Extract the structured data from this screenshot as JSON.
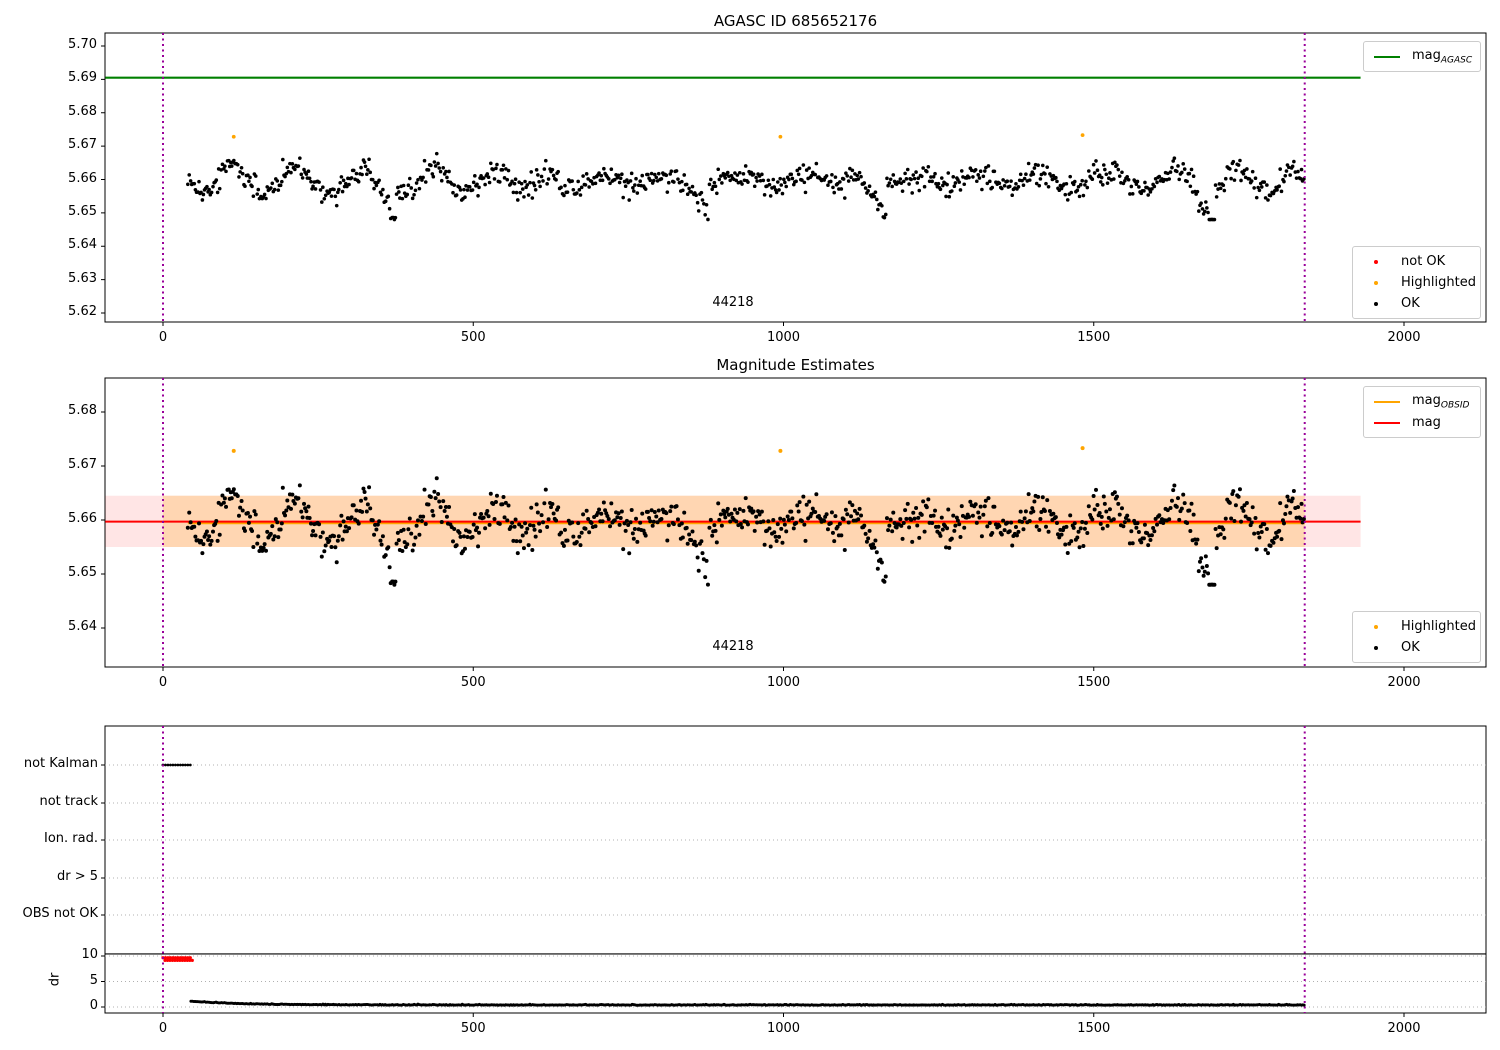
{
  "colors": {
    "agasc_green": "#008000",
    "mag_red": "#ff0000",
    "obsid_orange": "#ffa500",
    "highlight_orange": "#ffa500",
    "not_ok_red": "#ff0000",
    "ok_black": "#000000",
    "obs_boundary_purple": "#990099",
    "band_red": "rgba(255,0,0,0.10)",
    "band_orange": "rgba(255,165,0,0.22)",
    "grid_gray": "#b0b0b0"
  },
  "chart_data": [
    {
      "type": "scatter",
      "title": "AGASC ID 685652176",
      "xticks": [
        0,
        500,
        1000,
        1500,
        2000
      ],
      "yticks": [
        5.7,
        5.69,
        5.68,
        5.67,
        5.66,
        5.65,
        5.64,
        5.63,
        5.62
      ],
      "ylim": [
        5.6173,
        5.7039
      ],
      "xlim": [
        -100,
        2160
      ],
      "agasc_line": {
        "y": 5.6905,
        "x_range": [
          -93,
          1930
        ],
        "color": "#008000"
      },
      "obs_boundaries": {
        "x": [
          0,
          1840
        ],
        "color": "#990099",
        "style": "dotted"
      },
      "annotation": {
        "text": "44218",
        "x": 920,
        "y": 5.622
      },
      "scatter": {
        "x_range": [
          40,
          1840
        ],
        "n_approx": 920,
        "mean": 5.6597,
        "y_range": [
          5.648,
          5.672
        ],
        "color": "#000000",
        "label": "OK"
      },
      "highlighted_points": [
        [
          114,
          5.6728
        ],
        [
          995,
          5.6728
        ],
        [
          1482,
          5.6733
        ]
      ],
      "legend_line": {
        "items": [
          {
            "text": "mag",
            "sub": "AGASC",
            "color": "#008000"
          }
        ]
      },
      "legend_points": {
        "items": [
          {
            "label": "not OK",
            "color": "#ff0000"
          },
          {
            "label": "Highlighted",
            "color": "#ffa500"
          },
          {
            "label": "OK",
            "color": "#000000"
          }
        ]
      }
    },
    {
      "type": "scatter",
      "title": "Magnitude Estimates",
      "xticks": [
        0,
        500,
        1000,
        1500,
        2000
      ],
      "yticks": [
        5.68,
        5.67,
        5.66,
        5.65,
        5.64
      ],
      "ylim": [
        5.6329,
        5.6863
      ],
      "xlim": [
        -100,
        2160
      ],
      "mag_line": {
        "y": 5.6597,
        "x_range": [
          -93,
          1930
        ],
        "color": "#ff0000"
      },
      "obsid_line": {
        "y": 5.6594,
        "x_range": [
          40,
          1840
        ],
        "color": "#ffa500"
      },
      "band": {
        "y_range": [
          5.655,
          5.6645
        ],
        "x_range": [
          -93,
          1930
        ],
        "obsid_overlay_x_range": [
          0,
          1840
        ]
      },
      "obs_boundaries": {
        "x": [
          0,
          1840
        ],
        "color": "#990099",
        "style": "dotted"
      },
      "annotation": {
        "text": "44218",
        "x": 920,
        "y": 5.637
      },
      "scatter": {
        "x_range": [
          40,
          1840
        ],
        "n_approx": 920,
        "mean": 5.6597,
        "y_range": [
          5.648,
          5.672
        ],
        "color": "#000000",
        "label": "OK"
      },
      "highlighted_points": [
        [
          114,
          5.6728
        ],
        [
          995,
          5.6728
        ],
        [
          1482,
          5.6733
        ]
      ],
      "legend_line": {
        "items": [
          {
            "text": "mag",
            "sub": "OBSID",
            "color": "#ffa500"
          },
          {
            "text": "mag",
            "sub": "",
            "color": "#ff0000"
          }
        ]
      },
      "legend_points": {
        "items": [
          {
            "label": "Highlighted",
            "color": "#ffa500"
          },
          {
            "label": "OK",
            "color": "#000000"
          }
        ]
      }
    },
    {
      "type": "flags-timeline",
      "rows": [
        "not Kalman",
        "not track",
        "Ion. rad.",
        "dr > 5",
        "OBS not OK"
      ],
      "dr_axis": {
        "label": "dr",
        "ticks": [
          10,
          5,
          0
        ],
        "separator_value": 10.4
      },
      "xticks": [
        0,
        500,
        1000,
        1500,
        2000
      ],
      "flag_runs": [
        {
          "row": "not Kalman",
          "x_range": [
            0,
            45
          ],
          "color": "#000000"
        }
      ],
      "dr_clipped_run": {
        "x_range": [
          0,
          45
        ],
        "value": 9.4,
        "color": "#ff0000"
      },
      "dr_series": {
        "x_range": [
          45,
          1840
        ],
        "start_value": 1.1,
        "settle_value": 0.35,
        "color": "#000000"
      },
      "obs_boundaries": {
        "x": [
          0,
          1840
        ],
        "color": "#990099",
        "style": "dotted"
      }
    }
  ]
}
